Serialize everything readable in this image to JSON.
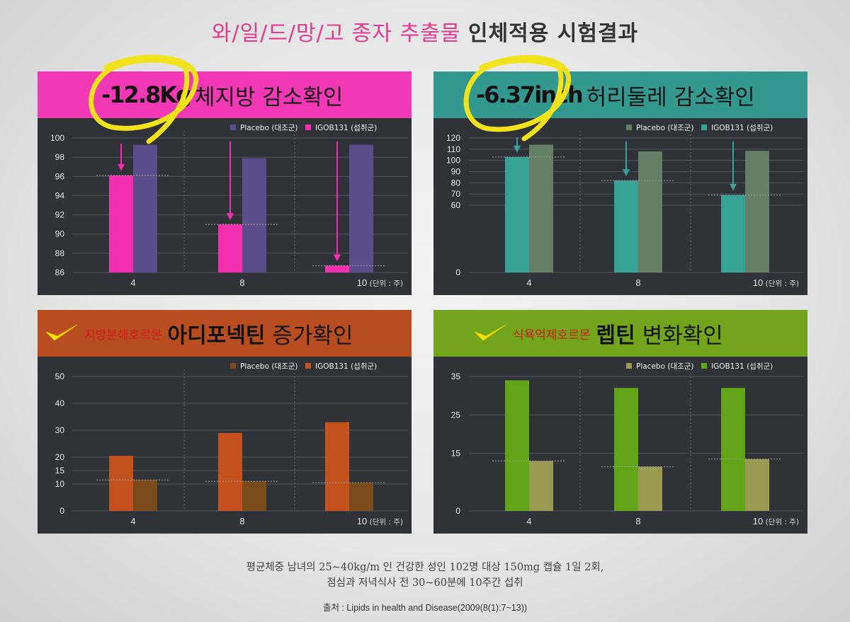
{
  "page_title": {
    "pink": "와/일/드/망/고 종자 추출물",
    "dark": "인체적용 시험결과"
  },
  "panels": [
    {
      "id": "fat",
      "header_color": "#f238b4",
      "header_highlight": "-12.8Kg",
      "header_text": "체지방 감소확인",
      "circle": true
    },
    {
      "id": "waist",
      "header_color": "#33998e",
      "header_highlight": "-6.37inch",
      "header_text": "허리둘레 감소확인",
      "circle": true
    },
    {
      "id": "adipo",
      "header_color": "#b84e1f",
      "header_sub": "지방분해호르몬",
      "header_bold": "아디포넥틴",
      "header_text": "증가확인",
      "check": true
    },
    {
      "id": "leptin",
      "header_color": "#72a51c",
      "header_sub": "식욕억제호르몬",
      "header_bold": "렙틴",
      "header_text": "변화확인",
      "check": true
    }
  ],
  "chart_data": [
    {
      "type": "bar",
      "categories": [
        "4",
        "8",
        "10"
      ],
      "unit_note": "(단위 : 주)",
      "ylim": [
        86,
        100
      ],
      "yticks": [
        86,
        88,
        90,
        92,
        94,
        96,
        98,
        100
      ],
      "series": [
        {
          "name": "Placebo (대조군)",
          "color": "#5c4e8a",
          "values": [
            99.3,
            97.9,
            99.3
          ]
        },
        {
          "name": "IGOB131 (섭취군)",
          "color": "#f42fb0",
          "values": [
            96.1,
            91.0,
            86.7
          ]
        }
      ],
      "arrows": "down",
      "arrow_color": "#f42fb0"
    },
    {
      "type": "bar",
      "categories": [
        "4",
        "8",
        "10"
      ],
      "unit_note": "(단위 : 주)",
      "ylim": [
        0,
        120
      ],
      "yticks": [
        0,
        60,
        70,
        80,
        90,
        100,
        110,
        120
      ],
      "series": [
        {
          "name": "Placebo (대조군)",
          "color": "#657e65",
          "values": [
            114,
            108,
            108.5
          ]
        },
        {
          "name": "IGOB131 (섭취군)",
          "color": "#36a395",
          "values": [
            103,
            82,
            69
          ]
        }
      ],
      "arrows": "down",
      "arrow_color": "#36a395"
    },
    {
      "type": "bar",
      "categories": [
        "4",
        "8",
        "10"
      ],
      "unit_note": "(단위 : 주)",
      "ylim": [
        0,
        50
      ],
      "yticks": [
        0,
        10,
        15,
        20,
        30,
        40,
        50
      ],
      "series": [
        {
          "name": "Placebo (대조군)",
          "color": "#7a4b1c",
          "values": [
            11.5,
            11,
            10.5
          ]
        },
        {
          "name": "IGOB131 (섭취군)",
          "color": "#c4521f",
          "values": [
            20.5,
            29,
            33
          ]
        }
      ],
      "arrows": "up",
      "arrow_color": "#c4521f"
    },
    {
      "type": "bar",
      "categories": [
        "4",
        "8",
        "10"
      ],
      "unit_note": "(단위 : 주)",
      "ylim": [
        0,
        35
      ],
      "yticks": [
        0,
        15,
        25,
        35
      ],
      "series": [
        {
          "name": "Placebo (대조군)",
          "color": "#9b9a52",
          "values": [
            13,
            11.5,
            13.5
          ]
        },
        {
          "name": "IGOB131 (섭취군)",
          "color": "#62a518",
          "values": [
            34,
            32,
            32
          ]
        }
      ],
      "arrows": "up",
      "arrow_color": "#62a518"
    }
  ],
  "footnote_line1": "평균체중 남녀의 25~40kg/m  인 건강한 성인 102명 대상 150mg 캡슐 1일 2회,",
  "footnote_line2": "점심과 저녁식사 전 30~60분에 10주간 섭취",
  "source": "출처 : Lipids in health and Disease(2009(8(1):7~13))"
}
